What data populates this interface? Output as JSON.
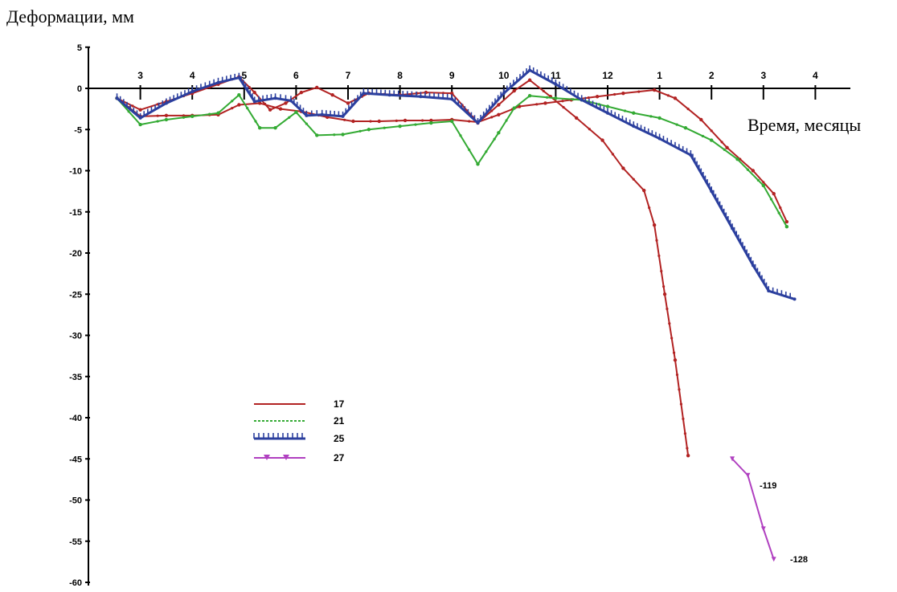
{
  "chart_data": {
    "type": "line",
    "ylabel": "Деформации, мм",
    "xlabel": "Время, месяцы",
    "ylim": [
      -60,
      5
    ],
    "y_ticks": [
      5,
      0,
      -5,
      -10,
      -15,
      -20,
      -25,
      -30,
      -35,
      -40,
      -45,
      -50,
      -55,
      -60
    ],
    "x_ticks": [
      {
        "label": "3",
        "x": 1
      },
      {
        "label": "4",
        "x": 2
      },
      {
        "label": "5",
        "x": 3
      },
      {
        "label": "6",
        "x": 4
      },
      {
        "label": "7",
        "x": 5
      },
      {
        "label": "8",
        "x": 6
      },
      {
        "label": "9",
        "x": 7
      },
      {
        "label": "10",
        "x": 8
      },
      {
        "label": "11",
        "x": 9
      },
      {
        "label": "12",
        "x": 10
      },
      {
        "label": "1",
        "x": 11
      },
      {
        "label": "2",
        "x": 12
      },
      {
        "label": "3",
        "x": 13
      },
      {
        "label": "4",
        "x": 14
      }
    ],
    "xlim": [
      0,
      15
    ],
    "legend_position": "lower-left",
    "series": [
      {
        "name": "17",
        "color": "#b22222",
        "marker": "dot",
        "points": [
          [
            0.55,
            -1.2
          ],
          [
            1.0,
            -3.4
          ],
          [
            1.5,
            -3.3
          ],
          [
            2.0,
            -3.3
          ],
          [
            2.5,
            -3.2
          ],
          [
            2.9,
            -2.0
          ],
          [
            3.3,
            -1.8
          ],
          [
            3.7,
            -2.5
          ],
          [
            4.1,
            -2.8
          ],
          [
            4.6,
            -3.5
          ],
          [
            5.1,
            -4.0
          ],
          [
            5.6,
            -4.0
          ],
          [
            6.1,
            -3.9
          ],
          [
            6.6,
            -3.9
          ],
          [
            7.0,
            -3.8
          ],
          [
            7.5,
            -4.1
          ],
          [
            7.9,
            -3.2
          ],
          [
            8.3,
            -2.2
          ],
          [
            8.8,
            -1.8
          ],
          [
            9.3,
            -1.4
          ],
          [
            9.8,
            -1.0
          ],
          [
            10.3,
            -0.6
          ],
          [
            10.9,
            -0.2
          ],
          [
            11.3,
            -1.2
          ],
          [
            11.8,
            -3.8
          ],
          [
            12.3,
            -7.2
          ],
          [
            12.8,
            -10.0
          ],
          [
            13.2,
            -12.8
          ],
          [
            13.45,
            -16.2
          ]
        ]
      },
      {
        "name": "17",
        "color": "#b22222",
        "marker": "dot",
        "points": [
          [
            0.55,
            -1.2
          ],
          [
            1.0,
            -2.6
          ],
          [
            1.5,
            -1.6
          ],
          [
            2.0,
            -0.6
          ],
          [
            2.5,
            0.5
          ],
          [
            2.9,
            1.4
          ],
          [
            3.2,
            -0.5
          ],
          [
            3.5,
            -2.6
          ],
          [
            3.8,
            -1.8
          ],
          [
            4.1,
            -0.5
          ],
          [
            4.4,
            0.1
          ],
          [
            4.7,
            -0.8
          ],
          [
            5.0,
            -1.8
          ],
          [
            5.4,
            -0.6
          ],
          [
            6.0,
            -0.8
          ],
          [
            6.5,
            -0.5
          ],
          [
            7.0,
            -0.6
          ],
          [
            7.5,
            -4.2
          ],
          [
            7.9,
            -2.0
          ],
          [
            8.2,
            -0.3
          ],
          [
            8.5,
            1.0
          ],
          [
            8.9,
            -1.0
          ],
          [
            9.4,
            -3.6
          ],
          [
            9.9,
            -6.3
          ],
          [
            10.3,
            -9.7
          ],
          [
            10.7,
            -12.4
          ],
          [
            10.9,
            -16.6
          ],
          [
            11.1,
            -25.0
          ],
          [
            11.3,
            -33.0
          ],
          [
            11.55,
            -44.6
          ]
        ]
      },
      {
        "name": "21",
        "color": "#33aa33",
        "marker": "dot",
        "points": [
          [
            0.55,
            -1.2
          ],
          [
            1.0,
            -4.4
          ],
          [
            1.5,
            -3.8
          ],
          [
            2.0,
            -3.4
          ],
          [
            2.5,
            -3.0
          ],
          [
            2.9,
            -0.8
          ],
          [
            3.3,
            -4.8
          ],
          [
            3.6,
            -4.8
          ],
          [
            4.0,
            -2.9
          ],
          [
            4.4,
            -5.7
          ],
          [
            4.9,
            -5.6
          ],
          [
            5.4,
            -5.0
          ],
          [
            6.0,
            -4.6
          ],
          [
            6.6,
            -4.2
          ],
          [
            7.0,
            -4.0
          ],
          [
            7.5,
            -9.2
          ],
          [
            7.9,
            -5.4
          ],
          [
            8.2,
            -2.4
          ],
          [
            8.5,
            -0.9
          ],
          [
            9.0,
            -1.2
          ],
          [
            9.5,
            -1.4
          ],
          [
            10.0,
            -2.2
          ],
          [
            10.5,
            -3.0
          ],
          [
            11.0,
            -3.6
          ],
          [
            11.5,
            -4.8
          ],
          [
            12.0,
            -6.3
          ],
          [
            12.5,
            -8.6
          ],
          [
            13.0,
            -11.8
          ],
          [
            13.45,
            -16.8
          ]
        ]
      },
      {
        "name": "25",
        "color": "#2b3f9e",
        "marker": "tick",
        "points": [
          [
            0.55,
            -1.2
          ],
          [
            1.0,
            -3.6
          ],
          [
            1.5,
            -1.8
          ],
          [
            2.0,
            -0.4
          ],
          [
            2.5,
            0.7
          ],
          [
            2.9,
            1.3
          ],
          [
            3.2,
            -1.6
          ],
          [
            3.6,
            -1.2
          ],
          [
            3.9,
            -1.5
          ],
          [
            4.2,
            -3.3
          ],
          [
            4.5,
            -3.2
          ],
          [
            4.9,
            -3.4
          ],
          [
            5.3,
            -0.6
          ],
          [
            5.8,
            -0.8
          ],
          [
            6.4,
            -1.0
          ],
          [
            7.0,
            -1.3
          ],
          [
            7.5,
            -4.2
          ],
          [
            8.0,
            -0.6
          ],
          [
            8.5,
            2.2
          ],
          [
            9.0,
            0.5
          ],
          [
            9.5,
            -1.4
          ],
          [
            10.0,
            -3.0
          ],
          [
            10.5,
            -4.6
          ],
          [
            11.0,
            -6.1
          ],
          [
            11.6,
            -8.1
          ],
          [
            12.0,
            -12.5
          ],
          [
            12.4,
            -17.0
          ],
          [
            12.8,
            -21.5
          ],
          [
            13.1,
            -24.6
          ],
          [
            13.6,
            -25.6
          ]
        ]
      },
      {
        "name": "27",
        "color": "#b040c0",
        "marker": "triangle",
        "points": [
          [
            12.4,
            -45.0
          ],
          [
            12.7,
            -47.0
          ],
          [
            13.0,
            -53.5
          ],
          [
            13.2,
            -57.2
          ]
        ]
      }
    ],
    "annotations": [
      "-119",
      "-128"
    ]
  }
}
